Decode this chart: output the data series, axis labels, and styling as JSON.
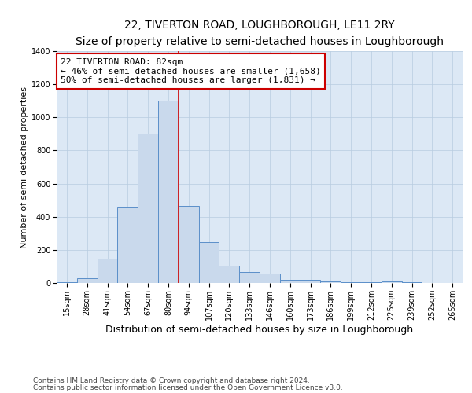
{
  "title": "22, TIVERTON ROAD, LOUGHBOROUGH, LE11 2RY",
  "subtitle": "Size of property relative to semi-detached houses in Loughborough",
  "xlabel": "Distribution of semi-detached houses by size in Loughborough",
  "ylabel": "Number of semi-detached properties",
  "categories": [
    "15sqm",
    "28sqm",
    "41sqm",
    "54sqm",
    "67sqm",
    "80sqm",
    "94sqm",
    "107sqm",
    "120sqm",
    "133sqm",
    "146sqm",
    "160sqm",
    "173sqm",
    "186sqm",
    "199sqm",
    "212sqm",
    "225sqm",
    "239sqm",
    "252sqm",
    "265sqm"
  ],
  "values": [
    5,
    30,
    145,
    460,
    900,
    1100,
    465,
    245,
    105,
    65,
    55,
    20,
    20,
    10,
    5,
    5,
    10,
    5,
    0,
    2
  ],
  "bar_color": "#c9d9ec",
  "bar_edge_color": "#5b8fc9",
  "property_bin_index": 5,
  "annotation_line1": "22 TIVERTON ROAD: 82sqm",
  "annotation_line2": "← 46% of semi-detached houses are smaller (1,658)",
  "annotation_line3": "50% of semi-detached houses are larger (1,831) →",
  "annotation_box_color": "#ffffff",
  "annotation_box_edge_color": "#cc0000",
  "vline_color": "#cc0000",
  "ylim": [
    0,
    1400
  ],
  "yticks": [
    0,
    200,
    400,
    600,
    800,
    1000,
    1200,
    1400
  ],
  "footer_line1": "Contains HM Land Registry data © Crown copyright and database right 2024.",
  "footer_line2": "Contains public sector information licensed under the Open Government Licence v3.0.",
  "bg_color": "#ffffff",
  "plot_bg_color": "#dce8f5",
  "grid_color": "#b8cce0",
  "title_fontsize": 10,
  "subtitle_fontsize": 9,
  "xlabel_fontsize": 9,
  "ylabel_fontsize": 8,
  "tick_fontsize": 7,
  "annotation_fontsize": 8,
  "footer_fontsize": 6.5
}
